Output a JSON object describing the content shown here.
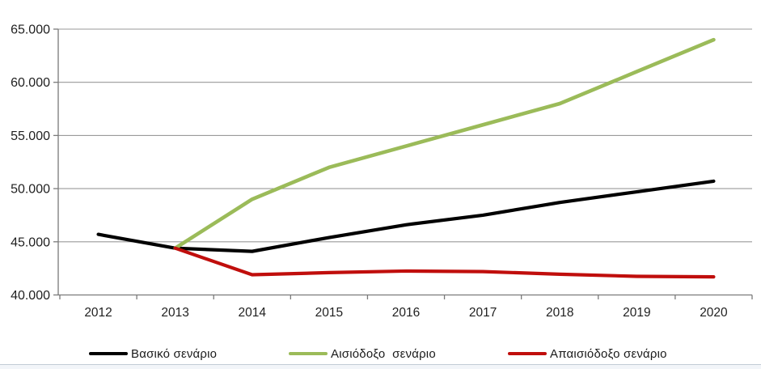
{
  "chart_data": {
    "type": "line",
    "categories": [
      "2012",
      "2013",
      "2014",
      "2015",
      "2016",
      "2017",
      "2018",
      "2019",
      "2020"
    ],
    "series": [
      {
        "name": "Βασικό σενάριο",
        "color": "#000000",
        "width": 4.2,
        "values": [
          45700,
          44400,
          44100,
          45400,
          46600,
          47500,
          48700,
          49700,
          50700
        ]
      },
      {
        "name": "Αισιόδοξο  σενάριο",
        "color": "#9BBB59",
        "width": 4.6,
        "values": [
          null,
          44400,
          49000,
          52000,
          54000,
          56000,
          58000,
          61000,
          64000
        ]
      },
      {
        "name": "Απαισιόδοξο σενάριο",
        "color": "#C00E0C",
        "width": 4.2,
        "values": [
          null,
          44400,
          41900,
          42100,
          42250,
          42200,
          41950,
          41750,
          41700
        ]
      }
    ],
    "title": "",
    "xlabel": "",
    "ylabel": "",
    "ylim": [
      40000,
      65000
    ],
    "ytick_step": 5000,
    "ytick_labels": [
      "40.000",
      "45.000",
      "50.000",
      "55.000",
      "60.000",
      "65.000"
    ],
    "grid": true,
    "legend_position": "bottom"
  },
  "legend": {
    "items": [
      {
        "label": "Βασικό σενάριο"
      },
      {
        "label": "Αισιόδοξο  σενάριο"
      },
      {
        "label": "Απαισιόδοξο σενάριο"
      }
    ]
  },
  "colors": {
    "series_basic": "#000000",
    "series_optimistic": "#9BBB59",
    "series_pessimistic": "#C00E0C",
    "gridline": "#9a9a9a",
    "axis": "#7a7a7a",
    "tick_label": "#1f1f1f",
    "bottom_strip_border": "#c2ccd6",
    "bottom_strip_fill": "#f2f5f9"
  }
}
